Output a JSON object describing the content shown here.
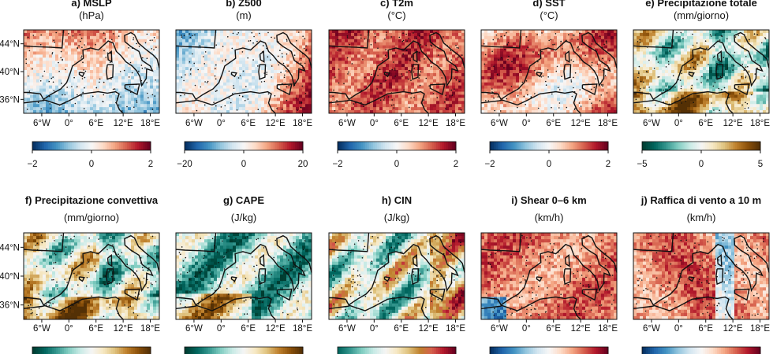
{
  "figure": {
    "panels": [
      {
        "title": "a) MSLP",
        "unit": "(hPa)",
        "cmap": "rdbu",
        "ticks": [
          "−2",
          "0",
          "2"
        ],
        "field": "mslp"
      },
      {
        "title": "b) Z500",
        "unit": "(m)",
        "cmap": "rdbu",
        "ticks": [
          "−20",
          "0",
          "20"
        ],
        "field": "z500"
      },
      {
        "title": "c) T2m",
        "unit": "(°C)",
        "cmap": "rdbu",
        "ticks": [
          "−2",
          "0",
          "2"
        ],
        "field": "warm"
      },
      {
        "title": "d) SST",
        "unit": "(°C)",
        "cmap": "rdbu",
        "ticks": [
          "−2",
          "0",
          "2"
        ],
        "field": "sst"
      },
      {
        "title": "e) Precipitazione totale",
        "unit": "(mm/giorno)",
        "cmap": "brbg",
        "ticks": [
          "−5",
          "0",
          "5"
        ],
        "field": "precip"
      },
      {
        "title": "f) Precipitazione convettiva",
        "unit": "(mm/giorno)",
        "cmap": "brbg",
        "ticks": [],
        "field": "precip"
      },
      {
        "title": "g) CAPE",
        "unit": "(J/kg)",
        "cmap": "brbg",
        "ticks": [],
        "field": "cape"
      },
      {
        "title": "h) CIN",
        "unit": "(J/kg)",
        "cmap": "brbg_rd",
        "ticks": [],
        "field": "cin"
      },
      {
        "title": "i) Shear 0–6 km",
        "unit": "(km/h)",
        "cmap": "rdbu",
        "ticks": [],
        "field": "shear"
      },
      {
        "title": "j) Raffica di vento a 10 m",
        "unit": "(km/h)",
        "cmap": "rdbu",
        "ticks": [],
        "field": "gust"
      }
    ],
    "lat_ticks": [
      "44°N",
      "40°N",
      "36°N"
    ],
    "lon_ticks": [
      "6°W",
      "0°",
      "6°E",
      "12°E",
      "18°E"
    ]
  },
  "chart_data": {
    "type": "heatmap",
    "map_extent": {
      "lon": [
        -10,
        20
      ],
      "lat": [
        34,
        46
      ]
    },
    "lon_ticks": [
      -6,
      0,
      6,
      12,
      18
    ],
    "lat_ticks": [
      44,
      40,
      36
    ],
    "colorbars": [
      {
        "panel": "a",
        "range": [
          -2,
          2
        ],
        "ticks": [
          -2,
          0,
          2
        ]
      },
      {
        "panel": "b",
        "range": [
          -20,
          20
        ],
        "ticks": [
          -20,
          0,
          20
        ]
      },
      {
        "panel": "c",
        "range": [
          -2,
          2
        ],
        "ticks": [
          -2,
          0,
          2
        ]
      },
      {
        "panel": "d",
        "range": [
          -2,
          2
        ],
        "ticks": [
          -2,
          0,
          2
        ]
      },
      {
        "panel": "e",
        "range": [
          -5,
          5
        ],
        "ticks": [
          -5,
          0,
          5
        ]
      }
    ],
    "colors": {
      "rdbu": [
        "#053061",
        "#2166ac",
        "#4393c3",
        "#92c5de",
        "#d1e5f0",
        "#f7f7f7",
        "#fddbc7",
        "#f4a582",
        "#d6604d",
        "#b2182b",
        "#67001f"
      ],
      "brbg": [
        "#003c30",
        "#01665e",
        "#35978f",
        "#80cdc1",
        "#c7eae5",
        "#f5f5f5",
        "#f6e8c3",
        "#dfc27d",
        "#bf812d",
        "#8c510a",
        "#543005"
      ],
      "brbg_rd": [
        "#01665e",
        "#35978f",
        "#80cdc1",
        "#c7eae5",
        "#f5f5f5",
        "#f6e8c3",
        "#dfc27d",
        "#bf812d",
        "#d6604d",
        "#b2182b",
        "#67001f"
      ]
    }
  }
}
